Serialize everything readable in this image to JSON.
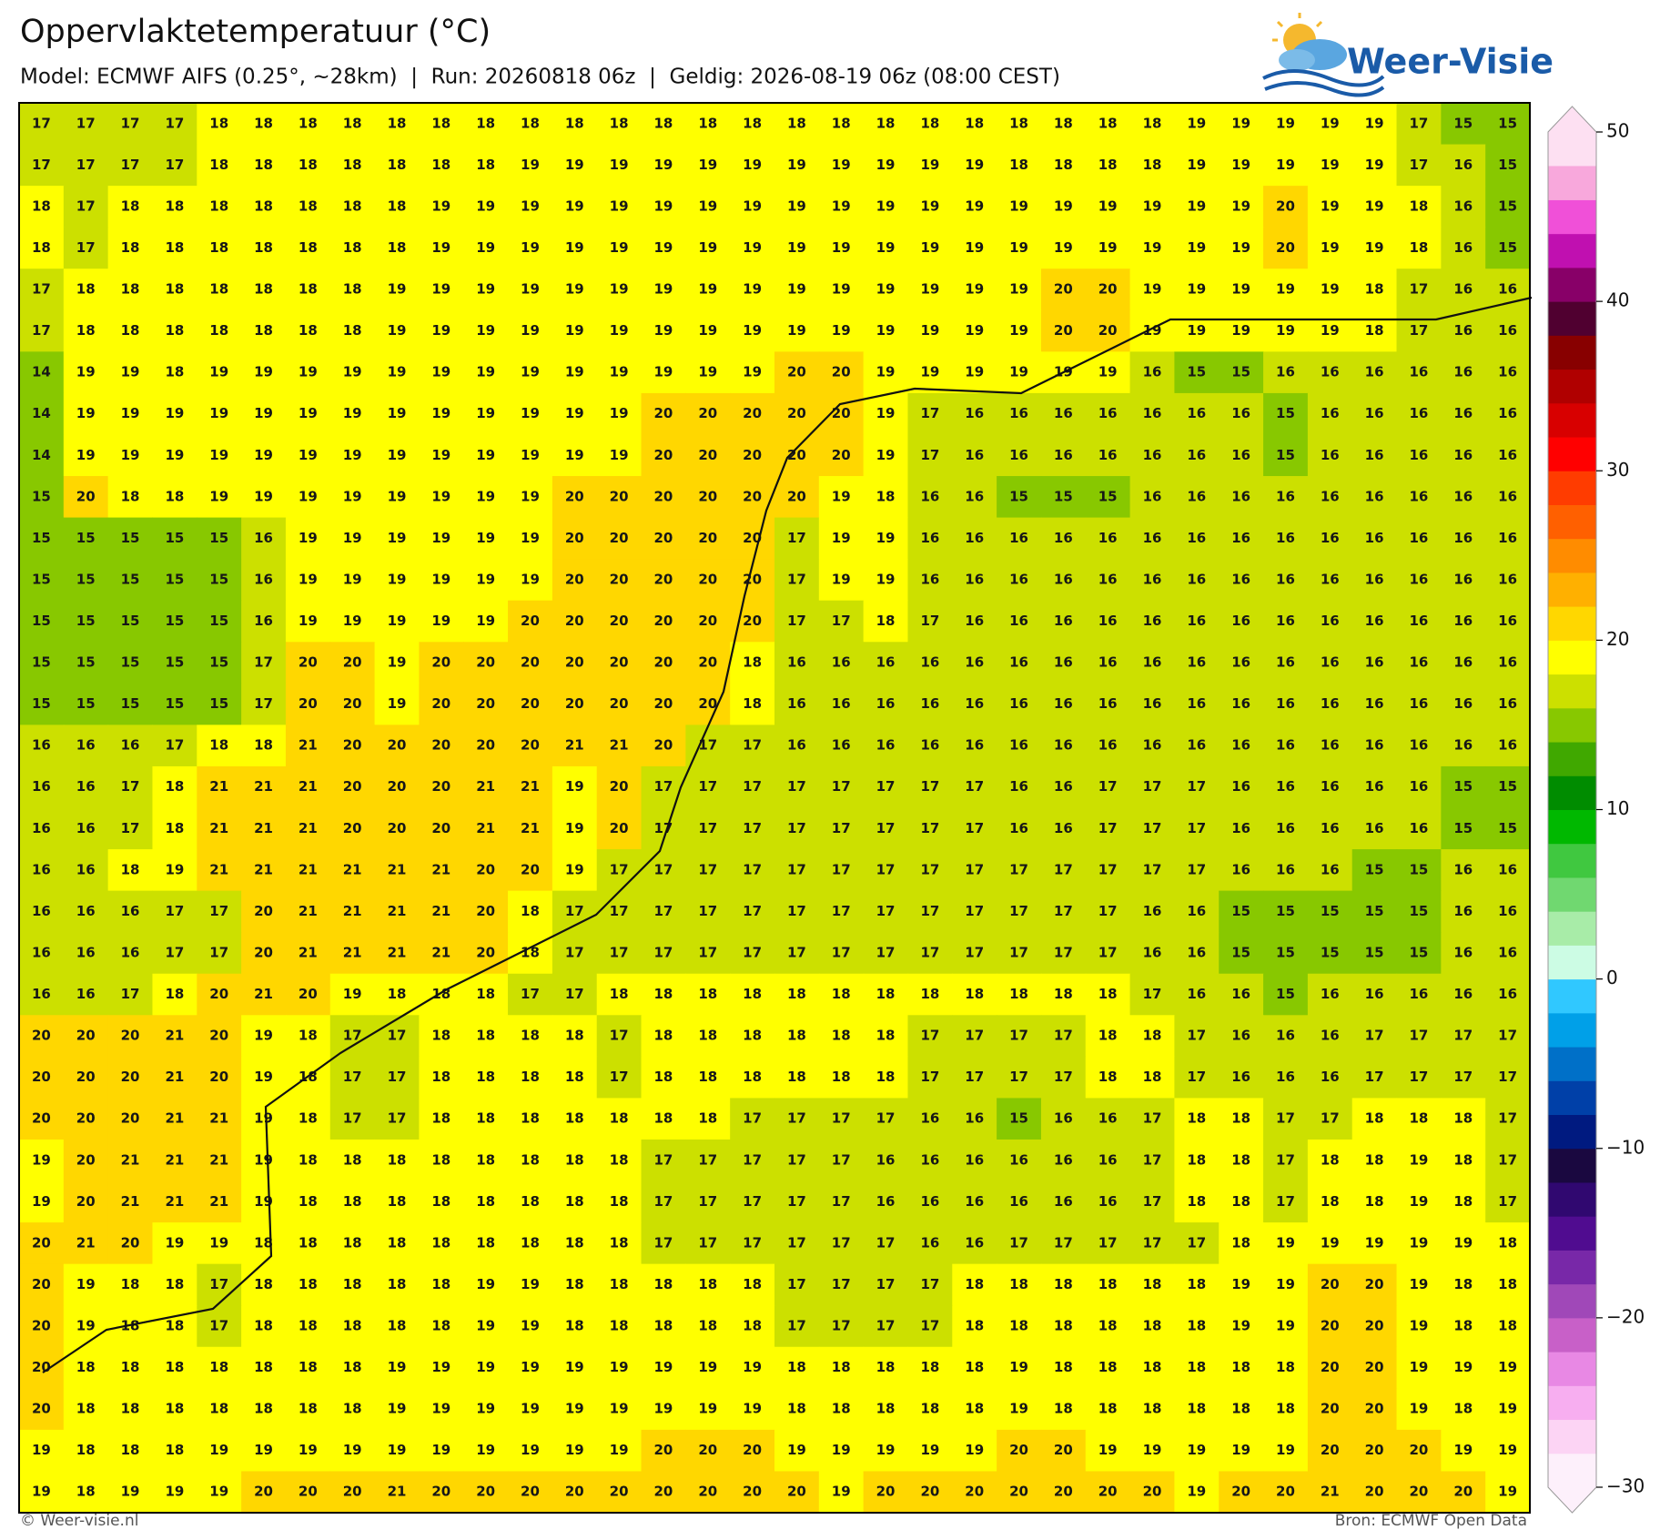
{
  "header": {
    "title": "Oppervlaktetemperatuur (°C)",
    "subtitle": "Model: ECMWF AIFS (0.25°, ~28km)  |  Run: 20260818 06z  |  Geldig: 2026-08-19 06z (08:00 CEST)"
  },
  "logo": {
    "text": "Weer-Visie"
  },
  "map": {
    "rows": [
      [
        17,
        17,
        17,
        17,
        18,
        18,
        18,
        18,
        18,
        18,
        18,
        18,
        18,
        18,
        18,
        18,
        18,
        18,
        18,
        18,
        18,
        18,
        18,
        18,
        18,
        18,
        19,
        19,
        19,
        19,
        19,
        17,
        15,
        15
      ],
      [
        17,
        17,
        17,
        17,
        18,
        18,
        18,
        18,
        18,
        18,
        18,
        19,
        19,
        19,
        19,
        19,
        19,
        19,
        19,
        19,
        19,
        19,
        18,
        18,
        18,
        18,
        19,
        19,
        19,
        19,
        19,
        17,
        16,
        15
      ],
      [
        18,
        17,
        18,
        18,
        18,
        18,
        18,
        18,
        18,
        19,
        19,
        19,
        19,
        19,
        19,
        19,
        19,
        19,
        19,
        19,
        19,
        19,
        19,
        19,
        19,
        19,
        19,
        19,
        20,
        19,
        19,
        18,
        16,
        15
      ],
      [
        18,
        17,
        18,
        18,
        18,
        18,
        18,
        18,
        18,
        19,
        19,
        19,
        19,
        19,
        19,
        19,
        19,
        19,
        19,
        19,
        19,
        19,
        19,
        19,
        19,
        19,
        19,
        19,
        20,
        19,
        19,
        18,
        16,
        15
      ],
      [
        17,
        18,
        18,
        18,
        18,
        18,
        18,
        18,
        19,
        19,
        19,
        19,
        19,
        19,
        19,
        19,
        19,
        19,
        19,
        19,
        19,
        19,
        19,
        20,
        20,
        19,
        19,
        19,
        19,
        19,
        18,
        17,
        16,
        16
      ],
      [
        17,
        18,
        18,
        18,
        18,
        18,
        18,
        18,
        19,
        19,
        19,
        19,
        19,
        19,
        19,
        19,
        19,
        19,
        19,
        19,
        19,
        19,
        19,
        20,
        20,
        19,
        19,
        19,
        19,
        19,
        18,
        17,
        16,
        16
      ],
      [
        14,
        19,
        19,
        18,
        19,
        19,
        19,
        19,
        19,
        19,
        19,
        19,
        19,
        19,
        19,
        19,
        19,
        20,
        20,
        19,
        19,
        19,
        19,
        19,
        19,
        16,
        15,
        15,
        16,
        16,
        16,
        16,
        16,
        16
      ],
      [
        14,
        19,
        19,
        19,
        19,
        19,
        19,
        19,
        19,
        19,
        19,
        19,
        19,
        19,
        20,
        20,
        20,
        20,
        20,
        19,
        17,
        16,
        16,
        16,
        16,
        16,
        16,
        16,
        15,
        16,
        16,
        16,
        16,
        16
      ],
      [
        14,
        19,
        19,
        19,
        19,
        19,
        19,
        19,
        19,
        19,
        19,
        19,
        19,
        19,
        20,
        20,
        20,
        20,
        20,
        19,
        17,
        16,
        16,
        16,
        16,
        16,
        16,
        16,
        15,
        16,
        16,
        16,
        16,
        16
      ],
      [
        15,
        20,
        18,
        18,
        19,
        19,
        19,
        19,
        19,
        19,
        19,
        19,
        20,
        20,
        20,
        20,
        20,
        20,
        19,
        18,
        16,
        16,
        15,
        15,
        15,
        16,
        16,
        16,
        16,
        16,
        16,
        16,
        16,
        16
      ],
      [
        15,
        15,
        15,
        15,
        15,
        16,
        19,
        19,
        19,
        19,
        19,
        19,
        20,
        20,
        20,
        20,
        20,
        17,
        19,
        19,
        16,
        16,
        16,
        16,
        16,
        16,
        16,
        16,
        16,
        16,
        16,
        16,
        16,
        16
      ],
      [
        15,
        15,
        15,
        15,
        15,
        16,
        19,
        19,
        19,
        19,
        19,
        19,
        20,
        20,
        20,
        20,
        20,
        17,
        19,
        19,
        16,
        16,
        16,
        16,
        16,
        16,
        16,
        16,
        16,
        16,
        16,
        16,
        16,
        16
      ],
      [
        15,
        15,
        15,
        15,
        15,
        16,
        19,
        19,
        19,
        19,
        19,
        20,
        20,
        20,
        20,
        20,
        20,
        17,
        17,
        18,
        17,
        16,
        16,
        16,
        16,
        16,
        16,
        16,
        16,
        16,
        16,
        16,
        16,
        16
      ],
      [
        15,
        15,
        15,
        15,
        15,
        17,
        20,
        20,
        19,
        20,
        20,
        20,
        20,
        20,
        20,
        20,
        18,
        16,
        16,
        16,
        16,
        16,
        16,
        16,
        16,
        16,
        16,
        16,
        16,
        16,
        16,
        16,
        16,
        16
      ],
      [
        15,
        15,
        15,
        15,
        15,
        17,
        20,
        20,
        19,
        20,
        20,
        20,
        20,
        20,
        20,
        20,
        18,
        16,
        16,
        16,
        16,
        16,
        16,
        16,
        16,
        16,
        16,
        16,
        16,
        16,
        16,
        16,
        16,
        16
      ],
      [
        16,
        16,
        16,
        17,
        18,
        18,
        21,
        20,
        20,
        20,
        20,
        20,
        21,
        21,
        20,
        17,
        17,
        16,
        16,
        16,
        16,
        16,
        16,
        16,
        16,
        16,
        16,
        16,
        16,
        16,
        16,
        16,
        16,
        16
      ],
      [
        16,
        16,
        17,
        18,
        21,
        21,
        21,
        20,
        20,
        20,
        21,
        21,
        19,
        20,
        17,
        17,
        17,
        17,
        17,
        17,
        17,
        17,
        16,
        16,
        17,
        17,
        17,
        16,
        16,
        16,
        16,
        16,
        15,
        15
      ],
      [
        16,
        16,
        17,
        18,
        21,
        21,
        21,
        20,
        20,
        20,
        21,
        21,
        19,
        20,
        17,
        17,
        17,
        17,
        17,
        17,
        17,
        17,
        16,
        16,
        17,
        17,
        17,
        16,
        16,
        16,
        16,
        16,
        15,
        15
      ],
      [
        16,
        16,
        18,
        19,
        21,
        21,
        21,
        21,
        21,
        21,
        20,
        20,
        19,
        17,
        17,
        17,
        17,
        17,
        17,
        17,
        17,
        17,
        17,
        17,
        17,
        17,
        17,
        16,
        16,
        16,
        15,
        15,
        16,
        16
      ],
      [
        16,
        16,
        16,
        17,
        17,
        20,
        21,
        21,
        21,
        21,
        20,
        18,
        17,
        17,
        17,
        17,
        17,
        17,
        17,
        17,
        17,
        17,
        17,
        17,
        17,
        16,
        16,
        15,
        15,
        15,
        15,
        15,
        16,
        16
      ],
      [
        16,
        16,
        16,
        17,
        17,
        20,
        21,
        21,
        21,
        21,
        20,
        18,
        17,
        17,
        17,
        17,
        17,
        17,
        17,
        17,
        17,
        17,
        17,
        17,
        17,
        16,
        16,
        15,
        15,
        15,
        15,
        15,
        16,
        16
      ],
      [
        16,
        16,
        17,
        18,
        20,
        21,
        20,
        19,
        18,
        18,
        18,
        17,
        17,
        18,
        18,
        18,
        18,
        18,
        18,
        18,
        18,
        18,
        18,
        18,
        18,
        17,
        16,
        16,
        15,
        16,
        16,
        16,
        16,
        16
      ],
      [
        20,
        20,
        20,
        21,
        20,
        19,
        18,
        17,
        17,
        18,
        18,
        18,
        18,
        17,
        18,
        18,
        18,
        18,
        18,
        18,
        17,
        17,
        17,
        17,
        18,
        18,
        17,
        16,
        16,
        16,
        17,
        17,
        17,
        17
      ],
      [
        20,
        20,
        20,
        21,
        20,
        19,
        18,
        17,
        17,
        18,
        18,
        18,
        18,
        17,
        18,
        18,
        18,
        18,
        18,
        18,
        17,
        17,
        17,
        17,
        18,
        18,
        17,
        16,
        16,
        16,
        17,
        17,
        17,
        17
      ],
      [
        20,
        20,
        20,
        21,
        21,
        19,
        18,
        17,
        17,
        18,
        18,
        18,
        18,
        18,
        18,
        18,
        17,
        17,
        17,
        17,
        16,
        16,
        15,
        16,
        16,
        17,
        18,
        18,
        17,
        17,
        18,
        18,
        18,
        17
      ],
      [
        19,
        20,
        21,
        21,
        21,
        19,
        18,
        18,
        18,
        18,
        18,
        18,
        18,
        18,
        17,
        17,
        17,
        17,
        17,
        16,
        16,
        16,
        16,
        16,
        16,
        17,
        18,
        18,
        17,
        18,
        18,
        19,
        18,
        17
      ],
      [
        19,
        20,
        21,
        21,
        21,
        19,
        18,
        18,
        18,
        18,
        18,
        18,
        18,
        18,
        17,
        17,
        17,
        17,
        17,
        16,
        16,
        16,
        16,
        16,
        16,
        17,
        18,
        18,
        17,
        18,
        18,
        19,
        18,
        17
      ],
      [
        20,
        21,
        20,
        19,
        19,
        18,
        18,
        18,
        18,
        18,
        18,
        18,
        18,
        18,
        17,
        17,
        17,
        17,
        17,
        17,
        16,
        16,
        17,
        17,
        17,
        17,
        17,
        18,
        19,
        19,
        19,
        19,
        19,
        18
      ],
      [
        20,
        19,
        18,
        18,
        17,
        18,
        18,
        18,
        18,
        18,
        19,
        19,
        18,
        18,
        18,
        18,
        18,
        17,
        17,
        17,
        17,
        18,
        18,
        18,
        18,
        18,
        18,
        19,
        19,
        20,
        20,
        19,
        18,
        18
      ],
      [
        20,
        19,
        18,
        18,
        17,
        18,
        18,
        18,
        18,
        18,
        19,
        19,
        18,
        18,
        18,
        18,
        18,
        17,
        17,
        17,
        17,
        18,
        18,
        18,
        18,
        18,
        18,
        19,
        19,
        20,
        20,
        19,
        18,
        18
      ],
      [
        20,
        18,
        18,
        18,
        18,
        18,
        18,
        18,
        19,
        19,
        19,
        19,
        19,
        19,
        19,
        19,
        19,
        18,
        18,
        18,
        18,
        18,
        19,
        18,
        18,
        18,
        18,
        18,
        18,
        20,
        20,
        19,
        19,
        19
      ],
      [
        20,
        18,
        18,
        18,
        18,
        18,
        18,
        18,
        19,
        19,
        19,
        19,
        19,
        19,
        19,
        19,
        19,
        18,
        18,
        18,
        18,
        18,
        19,
        18,
        18,
        18,
        18,
        18,
        18,
        20,
        20,
        19,
        18,
        19
      ],
      [
        19,
        18,
        18,
        18,
        19,
        19,
        19,
        19,
        19,
        19,
        19,
        19,
        19,
        19,
        20,
        20,
        20,
        19,
        19,
        19,
        19,
        19,
        20,
        20,
        19,
        19,
        19,
        19,
        19,
        20,
        20,
        20,
        19,
        19
      ],
      [
        19,
        18,
        19,
        19,
        19,
        20,
        20,
        20,
        21,
        20,
        20,
        20,
        20,
        20,
        20,
        20,
        20,
        20,
        19,
        20,
        20,
        20,
        20,
        20,
        20,
        20,
        19,
        20,
        20,
        21,
        20,
        20,
        20,
        19
      ]
    ],
    "colorbar": {
      "range": [
        -30,
        50
      ],
      "ticks": [
        {
          "value": -30,
          "label": "−30"
        },
        {
          "value": -20,
          "label": "−20"
        },
        {
          "value": -10,
          "label": "−10"
        },
        0,
        10,
        20,
        30,
        40,
        50
      ],
      "colors": [
        "#fdf0fb",
        "#fcd4f4",
        "#f7aef0",
        "#e888e4",
        "#c860c8",
        "#a048b8",
        "#7828a8",
        "#500c90",
        "#300870",
        "#1a0840",
        "#001a80",
        "#0040a8",
        "#0070c8",
        "#00a0e8",
        "#30c8ff",
        "#ccfce4",
        "#a8eca8",
        "#70d870",
        "#40c840",
        "#00b800",
        "#008c00",
        "#40a800",
        "#88c800",
        "#cce000",
        "#ffff00",
        "#ffd700",
        "#ffb000",
        "#ff8c00",
        "#ff6000",
        "#ff3c00",
        "#ff0000",
        "#d80000",
        "#b00000",
        "#880000",
        "#500030",
        "#880068",
        "#c010b0",
        "#f050d8",
        "#f8a8dc",
        "#fde0f2"
      ]
    }
  },
  "footer": {
    "left": "© Weer-visie.nl",
    "right": "Bron: ECMWF Open Data"
  }
}
